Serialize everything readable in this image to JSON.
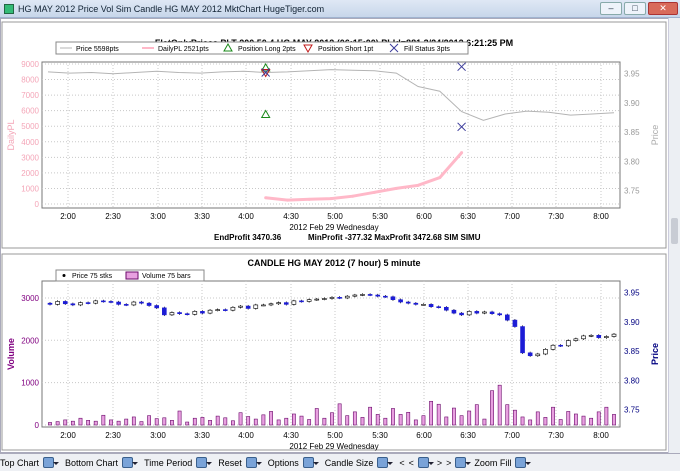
{
  "window": {
    "title": "HG MAY 2012 Price Vol  Sim  Candle HG MAY 2012          MktChart HugeTiger.com",
    "min": "–",
    "max": "□",
    "close": "✕"
  },
  "colors": {
    "pl": "#ffb8c8",
    "price_line": "#b4b4b4",
    "grid": "#c8c8c8",
    "candle_down": "#1c1cd6",
    "volume": "#e8a0e0",
    "volume_edge": "#6a0a6a",
    "long_marker": "#198a19",
    "short_marker": "#c01a1a",
    "fill_marker": "#3b3b9b",
    "axis_text": "#000080"
  },
  "top_chart": {
    "title": "FlatOnlyPrices PLT 200 50 4 HG MAY 2012 (06:15:00) PLId=881 3/24/2012 6:21:25 PM",
    "legend": [
      "Price 5598pts",
      "DailyPL 2521pts",
      "Position Long 2pts",
      "Position Short 1pt",
      "Fill Status 3pts"
    ],
    "ylabel_left": "DailyPL",
    "ylabel_right": "Price",
    "left_ticks": [
      "9000",
      "8000",
      "7000",
      "6000",
      "5000",
      "4000",
      "3000",
      "2000",
      "1000",
      "0"
    ],
    "right_ticks": [
      "3.95",
      "3.90",
      "3.85",
      "3.80",
      "3.75"
    ],
    "x_ticks": [
      "2:00",
      "2:30",
      "3:00",
      "3:30",
      "4:00",
      "4:30",
      "5:00",
      "5:30",
      "6:00",
      "6:30",
      "7:00",
      "7:30",
      "8:00"
    ],
    "xlabel": "2012 Feb 29 Wednesday",
    "footer_line1": "EndProfit 3470.36",
    "footer_line2": "MinProfit -377.32 MaxProfit 3472.68 SIM SIMU"
  },
  "bottom_chart": {
    "title": "CANDLE HG MAY 2012 (7 hour) 5 minute",
    "legend": [
      "Price 75 stks",
      "Volume 75 bars"
    ],
    "ylabel_left": "Volume",
    "ylabel_right": "Price",
    "left_ticks": [
      "3000",
      "2000",
      "1000",
      "0"
    ],
    "right_ticks": [
      "3.95",
      "3.90",
      "3.85",
      "3.80",
      "3.75"
    ],
    "x_ticks": [
      "2:00",
      "2:30",
      "3:00",
      "3:30",
      "4:00",
      "4:30",
      "5:00",
      "5:30",
      "6:00",
      "6:30",
      "7:00",
      "7:30",
      "8:00"
    ],
    "xlabel": "2012 Feb 29 Wednesday"
  },
  "toolbar": [
    {
      "name": "top-chart",
      "label": "Top Chart"
    },
    {
      "name": "bottom-chart",
      "label": "Bottom Chart"
    },
    {
      "name": "time-period",
      "label": "Time Period"
    },
    {
      "name": "reset",
      "label": "Reset"
    },
    {
      "name": "options",
      "label": "Options"
    },
    {
      "name": "candle-size",
      "label": "Candle Size"
    },
    {
      "name": "zoom-fill",
      "label": "Zoom Fill"
    }
  ],
  "toolbar_nav": [
    "<",
    "<",
    ">",
    ">"
  ],
  "chart_data": [
    {
      "type": "line",
      "title": "FlatOnlyPrices PLT 200 50 4 HG MAY 2012 (06:15:00) PLId=881 3/24/2012 6:21:25 PM",
      "xlabel": "2012 Feb 29 Wednesday",
      "ylabel": "DailyPL",
      "y2label": "Price",
      "x_categories": [
        "1:45",
        "2:00",
        "2:15",
        "2:30",
        "2:45",
        "3:00",
        "3:15",
        "3:30",
        "3:45",
        "4:00",
        "4:15",
        "4:30",
        "4:45",
        "5:00",
        "5:15",
        "5:30",
        "5:45",
        "6:00",
        "6:15",
        "6:30",
        "6:45",
        "7:00",
        "7:15",
        "7:30",
        "7:45",
        "8:00",
        "8:15"
      ],
      "series": [
        {
          "name": "Price 5598pts",
          "axis": "right",
          "values": [
            3.953,
            3.951,
            3.952,
            3.95,
            3.952,
            3.954,
            3.952,
            3.951,
            3.953,
            3.954,
            3.952,
            3.953,
            3.955,
            3.957,
            3.956,
            3.955,
            3.951,
            3.928,
            3.92,
            3.885,
            3.87,
            3.881,
            3.886,
            3.884,
            3.879,
            3.881,
            3.883
          ]
        },
        {
          "name": "DailyPL 2521pts",
          "axis": "left",
          "values": [
            null,
            null,
            null,
            null,
            null,
            null,
            null,
            null,
            null,
            null,
            400,
            250,
            300,
            350,
            500,
            750,
            1000,
            1200,
            1700,
            3300,
            null,
            null,
            null,
            null,
            null,
            null,
            null
          ]
        }
      ],
      "markers": [
        {
          "name": "Position Long 2pts",
          "points": [
            {
              "x": "4:15",
              "y": 3.96
            },
            {
              "x": "4:15",
              "y": 3.88
            }
          ]
        },
        {
          "name": "Position Short 1pt",
          "points": [
            {
              "x": "4:15",
              "y": 3.952
            }
          ]
        },
        {
          "name": "Fill Status 3pts",
          "points": [
            {
              "x": "4:15",
              "y": 3.952
            },
            {
              "x": "6:30",
              "y": 3.962
            },
            {
              "x": "6:30",
              "y": 3.859
            }
          ]
        }
      ],
      "ylim_left": [
        0,
        9000
      ],
      "ylim_right": [
        3.72,
        3.97
      ]
    },
    {
      "type": "candlestick",
      "title": "CANDLE HG MAY 2012 (7 hour) 5 minute",
      "xlabel": "2012 Feb 29 Wednesday",
      "ylabel": "Volume",
      "y2label": "Price",
      "series": [
        {
          "name": "Price 75 stks",
          "axis": "right",
          "closes": [
            3.93,
            3.935,
            3.931,
            3.929,
            3.933,
            3.932,
            3.936,
            3.935,
            3.934,
            3.93,
            3.929,
            3.934,
            3.932,
            3.928,
            3.924,
            3.912,
            3.916,
            3.914,
            3.913,
            3.918,
            3.915,
            3.92,
            3.921,
            3.92,
            3.925,
            3.927,
            3.923,
            3.929,
            3.929,
            3.931,
            3.933,
            3.93,
            3.936,
            3.935,
            3.938,
            3.939,
            3.94,
            3.942,
            3.941,
            3.944,
            3.946,
            3.947,
            3.946,
            3.944,
            3.943,
            3.938,
            3.934,
            3.932,
            3.93,
            3.93,
            3.926,
            3.925,
            3.92,
            3.915,
            3.912,
            3.918,
            3.915,
            3.917,
            3.914,
            3.912,
            3.903,
            3.892,
            3.847,
            3.842,
            3.845,
            3.853,
            3.86,
            3.859,
            3.868,
            3.871,
            3.876,
            3.877,
            3.873,
            3.875,
            3.879
          ]
        },
        {
          "name": "Volume 75 bars",
          "axis": "left",
          "values": [
            60,
            80,
            120,
            90,
            160,
            110,
            90,
            230,
            120,
            90,
            140,
            190,
            80,
            220,
            150,
            170,
            110,
            330,
            70,
            160,
            180,
            110,
            210,
            170,
            100,
            290,
            200,
            140,
            240,
            320,
            120,
            160,
            260,
            210,
            130,
            390,
            160,
            290,
            500,
            220,
            310,
            180,
            420,
            250,
            160,
            390,
            250,
            300,
            120,
            220,
            560,
            490,
            190,
            400,
            220,
            330,
            480,
            140,
            810,
            940,
            480,
            350,
            190,
            120,
            310,
            180,
            420,
            130,
            320,
            260,
            210,
            160,
            310,
            420,
            250
          ]
        }
      ],
      "ylim_left": [
        0,
        3400
      ],
      "ylim_right": [
        3.72,
        3.97
      ]
    }
  ]
}
